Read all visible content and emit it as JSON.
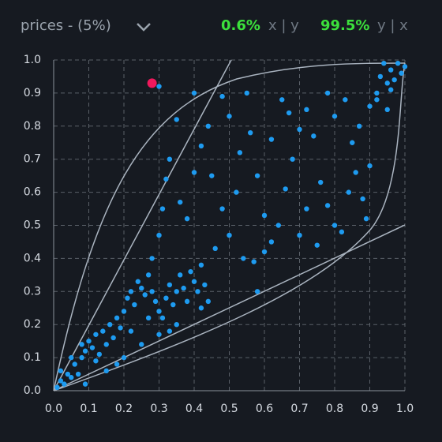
{
  "header": {
    "title": "prices - (5%)",
    "xy_value": "0.6%",
    "xy_label": "x | y",
    "yx_value": "99.5%",
    "yx_label": "y | x"
  },
  "chart_data": {
    "type": "scatter",
    "xlim": [
      0,
      1
    ],
    "ylim": [
      0,
      1
    ],
    "xticks": [
      {
        "value": 0,
        "label": "0.0"
      },
      0.1,
      0.2,
      0.3,
      0.4,
      0.5,
      0.6,
      0.7,
      0.8,
      0.9,
      {
        "value": 1,
        "label": "1.0"
      }
    ],
    "yticks": [
      {
        "value": 0,
        "label": "0.0"
      },
      0.1,
      0.2,
      0.3,
      0.4,
      0.5,
      0.6,
      0.7,
      0.8,
      0.9,
      {
        "value": 1,
        "label": "1.0"
      }
    ],
    "grid": true,
    "x": [
      0.01,
      0.02,
      0.03,
      0.04,
      0.05,
      0.02,
      0.06,
      0.07,
      0.08,
      0.09,
      0.1,
      0.11,
      0.12,
      0.13,
      0.14,
      0.15,
      0.16,
      0.17,
      0.18,
      0.19,
      0.2,
      0.21,
      0.22,
      0.23,
      0.24,
      0.25,
      0.26,
      0.27,
      0.28,
      0.29,
      0.3,
      0.31,
      0.32,
      0.33,
      0.34,
      0.35,
      0.36,
      0.37,
      0.38,
      0.39,
      0.4,
      0.41,
      0.42,
      0.43,
      0.44,
      0.2,
      0.25,
      0.3,
      0.35,
      0.18,
      0.09,
      0.15,
      0.05,
      0.08,
      0.12,
      0.22,
      0.27,
      0.33,
      0.28,
      0.3,
      0.31,
      0.32,
      0.33,
      0.36,
      0.38,
      0.4,
      0.42,
      0.44,
      0.48,
      0.5,
      0.52,
      0.53,
      0.5,
      0.48,
      0.55,
      0.56,
      0.58,
      0.6,
      0.54,
      0.57,
      0.6,
      0.62,
      0.64,
      0.66,
      0.68,
      0.7,
      0.72,
      0.65,
      0.74,
      0.76,
      0.78,
      0.8,
      0.82,
      0.75,
      0.7,
      0.72,
      0.84,
      0.86,
      0.88,
      0.85,
      0.8,
      0.78,
      0.83,
      0.87,
      0.9,
      0.89,
      0.9,
      0.92,
      0.93,
      0.95,
      0.96,
      0.97,
      0.98,
      0.99,
      1.0,
      0.94,
      0.96,
      0.92,
      0.95,
      0.4,
      0.3,
      0.35,
      0.45,
      0.62,
      0.67,
      0.46,
      0.42,
      0.58
    ],
    "series": [
      {
        "color": "#1e9bf0",
        "values": [
          0.01,
          0.03,
          0.02,
          0.05,
          0.04,
          0.06,
          0.08,
          0.05,
          0.1,
          0.12,
          0.15,
          0.13,
          0.17,
          0.11,
          0.18,
          0.14,
          0.2,
          0.16,
          0.22,
          0.19,
          0.24,
          0.28,
          0.3,
          0.26,
          0.33,
          0.31,
          0.29,
          0.35,
          0.3,
          0.27,
          0.24,
          0.22,
          0.28,
          0.32,
          0.26,
          0.3,
          0.35,
          0.31,
          0.27,
          0.36,
          0.33,
          0.3,
          0.25,
          0.32,
          0.27,
          0.1,
          0.14,
          0.17,
          0.2,
          0.08,
          0.02,
          0.06,
          0.1,
          0.14,
          0.09,
          0.18,
          0.22,
          0.18,
          0.4,
          0.47,
          0.55,
          0.64,
          0.7,
          0.57,
          0.52,
          0.66,
          0.74,
          0.8,
          0.55,
          0.47,
          0.6,
          0.72,
          0.83,
          0.89,
          0.9,
          0.78,
          0.65,
          0.53,
          0.4,
          0.39,
          0.42,
          0.45,
          0.5,
          0.61,
          0.7,
          0.79,
          0.85,
          0.88,
          0.77,
          0.63,
          0.56,
          0.5,
          0.48,
          0.44,
          0.47,
          0.55,
          0.6,
          0.66,
          0.58,
          0.75,
          0.83,
          0.9,
          0.88,
          0.8,
          0.68,
          0.52,
          0.86,
          0.9,
          0.95,
          0.93,
          0.97,
          0.94,
          0.99,
          0.96,
          0.98,
          0.99,
          0.91,
          0.88,
          0.85,
          0.9,
          0.92,
          0.82,
          0.65,
          0.76,
          0.84,
          0.43,
          0.38,
          0.3
        ]
      }
    ],
    "highlight": {
      "x": 0.28,
      "y": 0.93,
      "color": "#f0185c"
    }
  }
}
